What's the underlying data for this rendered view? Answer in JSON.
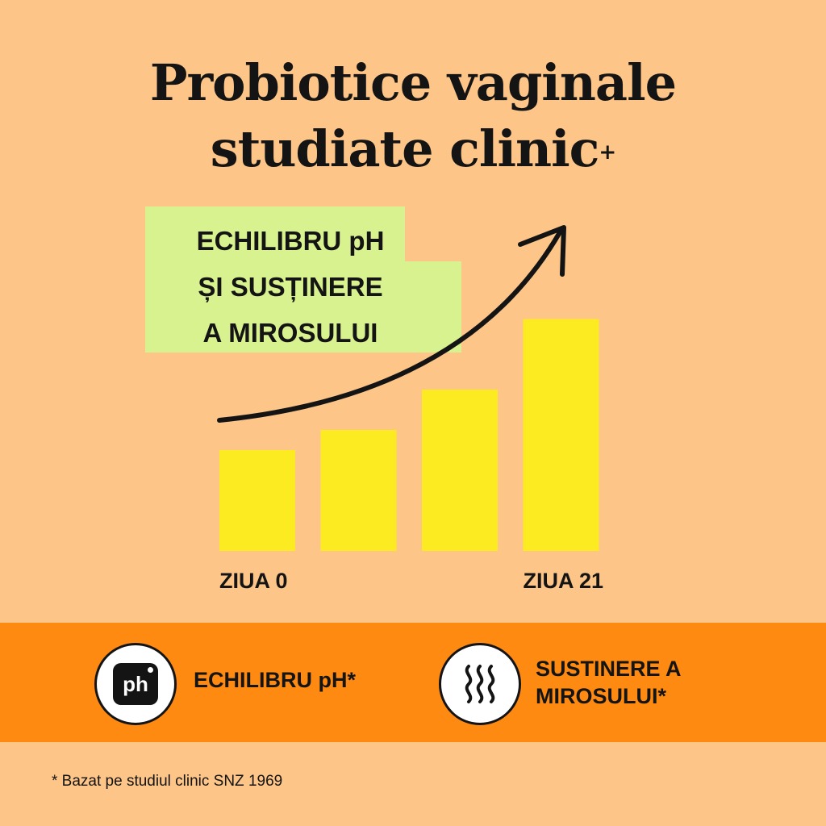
{
  "title": {
    "line1": "Probiotice vaginale",
    "line2": "studiate clinic",
    "superscript": "+"
  },
  "callout": {
    "line1": "ECHILIBRU pH",
    "line2": "ȘI SUSȚINERE",
    "line3": "A MIROSULUI"
  },
  "chart_data": {
    "type": "bar",
    "categories": [
      "ZIUA 0",
      "",
      "",
      "ZIUA 21"
    ],
    "values": [
      1.0,
      1.2,
      1.6,
      2.3
    ],
    "title": "",
    "xlabel": "",
    "ylabel": "",
    "ylim": [
      0,
      2.4
    ],
    "trend_arrow": "upward curve",
    "grid": false,
    "bar_color": "#FDEB22"
  },
  "benefits": [
    {
      "icon": "ph-icon",
      "icon_text": "ph",
      "label_line1": "ECHILIBRU pH*",
      "label_line2": ""
    },
    {
      "icon": "odor-waves-icon",
      "label_line1": "SUSTINERE A",
      "label_line2": "MIROSULUI*"
    }
  ],
  "footnote": "* Bazat pe studiul clinic SNZ 1969",
  "colors": {
    "background": "#FDC587",
    "band": "#FF8A12",
    "green": "#D7F28E",
    "bar": "#FDEB22",
    "text": "#141414"
  }
}
